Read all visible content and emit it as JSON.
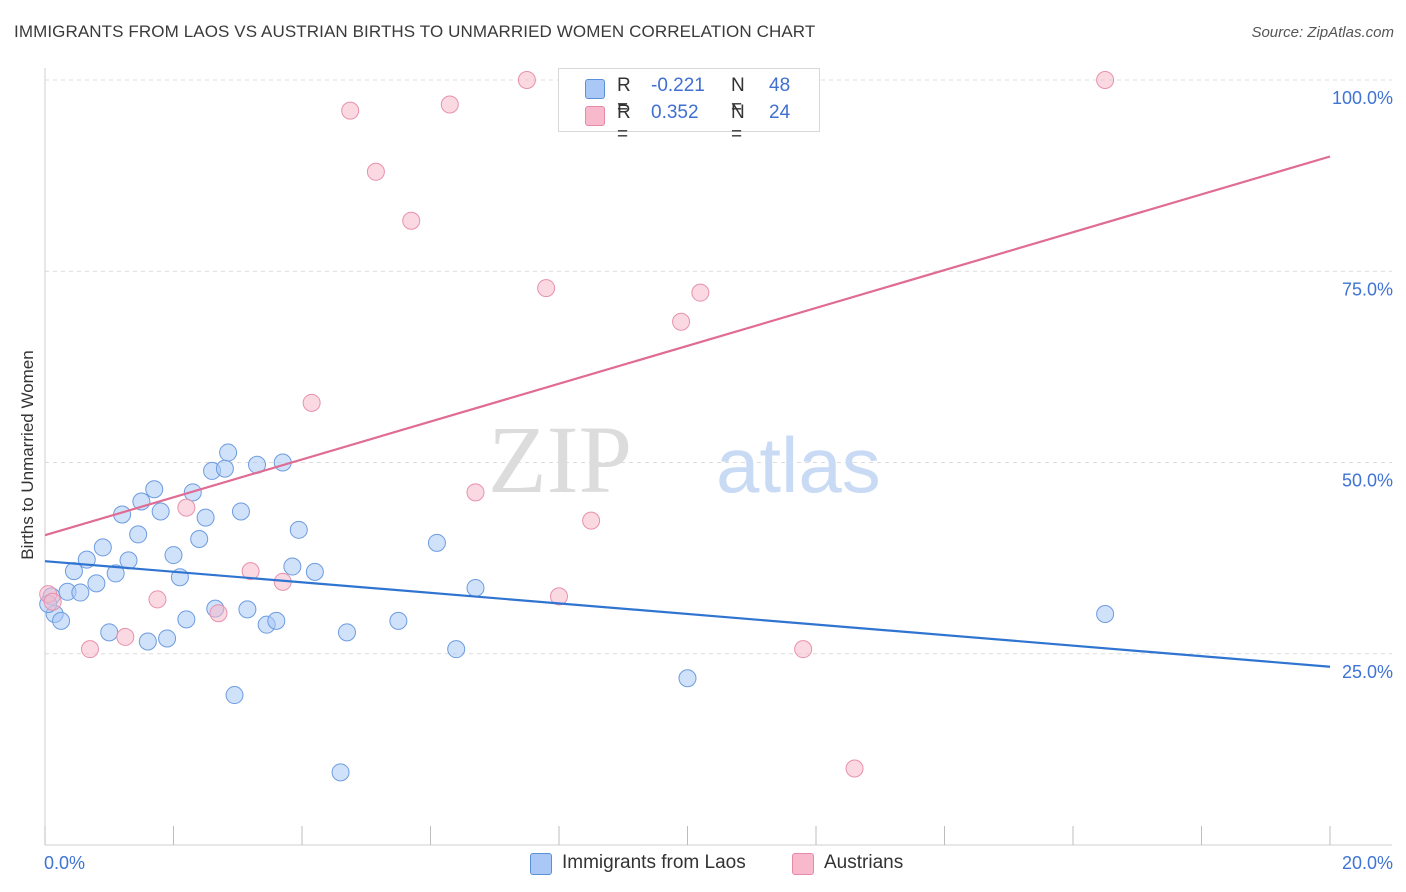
{
  "title": "IMMIGRANTS FROM LAOS VS AUSTRIAN BIRTHS TO UNMARRIED WOMEN CORRELATION CHART",
  "source": "Source: ZipAtlas.com",
  "watermark": {
    "zip": "ZIP",
    "atlas": "atlas"
  },
  "legend": {
    "rows": [
      {
        "r_label": "R =",
        "r_value": "-0.221",
        "n_label": "N =",
        "n_value": "48",
        "color": "#a9c8f5"
      },
      {
        "r_label": "R =",
        "r_value": "0.352",
        "n_label": "N =",
        "n_value": "24",
        "color": "#f7b9cb"
      }
    ]
  },
  "bottom_legend": {
    "series1": "Immigrants from Laos",
    "series2": "Austrians"
  },
  "chart_data": {
    "type": "scatter",
    "title": "IMMIGRANTS FROM LAOS VS AUSTRIAN BIRTHS TO UNMARRIED WOMEN CORRELATION CHART",
    "xlabel": "",
    "ylabel": "Births to Unmarried Women",
    "xlim": [
      0,
      20
    ],
    "ylim": [
      0,
      100
    ],
    "x_tick_labels": [
      "0.0%",
      "20.0%"
    ],
    "y_ticks": [
      25,
      50,
      75,
      100
    ],
    "y_tick_labels": [
      "25.0%",
      "50.0%",
      "75.0%",
      "100.0%"
    ],
    "grid": "horizontal dashed",
    "legend_placement": "top-center",
    "colors": {
      "series1_fill": "#a9c8f5",
      "series1_line": "#2f74d0",
      "series2_fill": "#f7b9cb",
      "series2_line": "#e06b93"
    },
    "series": [
      {
        "name": "Immigrants from Laos",
        "r": -0.221,
        "n": 48,
        "trend": {
          "x": [
            0,
            20
          ],
          "y": [
            37.1,
            23.3
          ]
        },
        "points": [
          [
            0.1,
            32.5
          ],
          [
            0.15,
            30.2
          ],
          [
            0.25,
            29.3
          ],
          [
            0.35,
            33.1
          ],
          [
            0.45,
            35.8
          ],
          [
            0.55,
            33.0
          ],
          [
            0.65,
            37.3
          ],
          [
            0.8,
            34.2
          ],
          [
            0.9,
            38.9
          ],
          [
            1.0,
            27.8
          ],
          [
            1.1,
            35.5
          ],
          [
            1.2,
            43.2
          ],
          [
            1.3,
            37.2
          ],
          [
            1.45,
            40.6
          ],
          [
            1.5,
            44.9
          ],
          [
            1.6,
            26.6
          ],
          [
            1.7,
            46.5
          ],
          [
            1.8,
            43.6
          ],
          [
            1.9,
            27.0
          ],
          [
            2.0,
            37.9
          ],
          [
            2.1,
            35.0
          ],
          [
            2.2,
            29.5
          ],
          [
            2.3,
            46.1
          ],
          [
            2.4,
            40.0
          ],
          [
            2.5,
            42.8
          ],
          [
            2.6,
            48.9
          ],
          [
            2.65,
            30.9
          ],
          [
            2.8,
            49.2
          ],
          [
            2.85,
            51.3
          ],
          [
            2.95,
            19.6
          ],
          [
            3.05,
            43.6
          ],
          [
            3.15,
            30.8
          ],
          [
            3.3,
            49.7
          ],
          [
            3.45,
            28.8
          ],
          [
            3.6,
            29.3
          ],
          [
            3.7,
            50.0
          ],
          [
            3.85,
            36.4
          ],
          [
            3.95,
            41.2
          ],
          [
            4.2,
            35.7
          ],
          [
            4.7,
            27.8
          ],
          [
            4.6,
            9.5
          ],
          [
            5.5,
            29.3
          ],
          [
            6.1,
            39.5
          ],
          [
            6.4,
            25.6
          ],
          [
            6.7,
            33.6
          ],
          [
            10.0,
            21.8
          ],
          [
            16.5,
            30.2
          ],
          [
            0.05,
            31.5
          ]
        ]
      },
      {
        "name": "Austrians",
        "r": 0.352,
        "n": 24,
        "trend": {
          "x": [
            0,
            20
          ],
          "y": [
            40.5,
            90.0
          ]
        },
        "points": [
          [
            0.05,
            32.8
          ],
          [
            0.7,
            25.6
          ],
          [
            1.25,
            27.2
          ],
          [
            1.75,
            32.1
          ],
          [
            2.2,
            44.1
          ],
          [
            2.7,
            30.3
          ],
          [
            3.2,
            35.8
          ],
          [
            3.7,
            34.4
          ],
          [
            4.15,
            57.8
          ],
          [
            4.75,
            96.0
          ],
          [
            5.15,
            88.0
          ],
          [
            5.7,
            81.6
          ],
          [
            6.3,
            96.8
          ],
          [
            6.7,
            46.1
          ],
          [
            7.5,
            100.0
          ],
          [
            7.8,
            72.8
          ],
          [
            8.0,
            32.5
          ],
          [
            8.5,
            42.4
          ],
          [
            9.9,
            68.4
          ],
          [
            10.2,
            72.2
          ],
          [
            11.8,
            25.6
          ],
          [
            12.6,
            10.0
          ],
          [
            16.5,
            100.0
          ],
          [
            0.12,
            31.8
          ]
        ]
      }
    ]
  }
}
